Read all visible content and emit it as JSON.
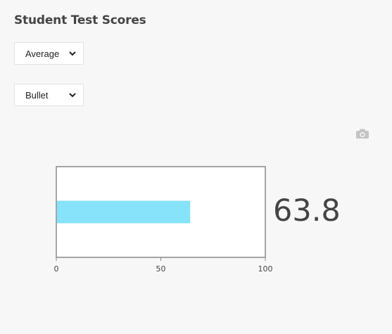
{
  "title": "Student Test Scores",
  "controls": {
    "aggregation": {
      "selected": "Average"
    },
    "chart_type": {
      "selected": "Bullet"
    }
  },
  "toolbar": {
    "snapshot_icon": "camera-icon"
  },
  "colors": {
    "bar": "#86e3f9",
    "frame": "#888888",
    "text": "#444444"
  },
  "chart_data": {
    "type": "bar",
    "values": [
      63.8
    ],
    "value_label": "63.8",
    "xlim": [
      0,
      100
    ],
    "x_ticks": [
      0,
      50,
      100
    ],
    "x_tick_labels": [
      "0",
      "50",
      "100"
    ]
  }
}
